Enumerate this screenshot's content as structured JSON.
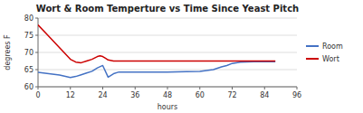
{
  "chart_data": {
    "type": "line",
    "title": "Wort & Room Temperture vs Time Since Yeast Pitch",
    "xlabel": "hours",
    "ylabel": "degrees F",
    "xlim": [
      0,
      96
    ],
    "ylim": [
      60,
      80
    ],
    "xticks": [
      0,
      12,
      24,
      36,
      48,
      60,
      72,
      84,
      96
    ],
    "yticks": [
      60,
      65,
      70,
      75,
      80
    ],
    "grid": "y",
    "legend": "right",
    "series": [
      {
        "name": "Room",
        "color": "#4472C4",
        "x": [
          0,
          4,
          8,
          12,
          14,
          16,
          18,
          20,
          22,
          24,
          26,
          28,
          30,
          36,
          48,
          55,
          60,
          65,
          68,
          70,
          72,
          75,
          80,
          84,
          88
        ],
        "values": [
          64.2,
          63.8,
          63.4,
          62.7,
          63.0,
          63.5,
          64.0,
          64.5,
          65.5,
          66.2,
          62.8,
          63.8,
          64.3,
          64.3,
          64.3,
          64.4,
          64.5,
          65.0,
          65.8,
          66.2,
          66.8,
          67.2,
          67.3,
          67.3,
          67.3
        ]
      },
      {
        "name": "Wort",
        "color": "#CC0000",
        "x": [
          0,
          3,
          6,
          9,
          12,
          14,
          16,
          18,
          20,
          22,
          23,
          24,
          25,
          26,
          28,
          30,
          36,
          48,
          55,
          60,
          65,
          68,
          72,
          78,
          84,
          88
        ],
        "values": [
          78.0,
          75.5,
          73.0,
          70.5,
          68.0,
          67.2,
          67.0,
          67.5,
          68.0,
          68.8,
          69.0,
          68.8,
          68.3,
          67.8,
          67.5,
          67.5,
          67.5,
          67.5,
          67.5,
          67.5,
          67.5,
          67.5,
          67.5,
          67.5,
          67.5,
          67.5
        ]
      }
    ]
  }
}
